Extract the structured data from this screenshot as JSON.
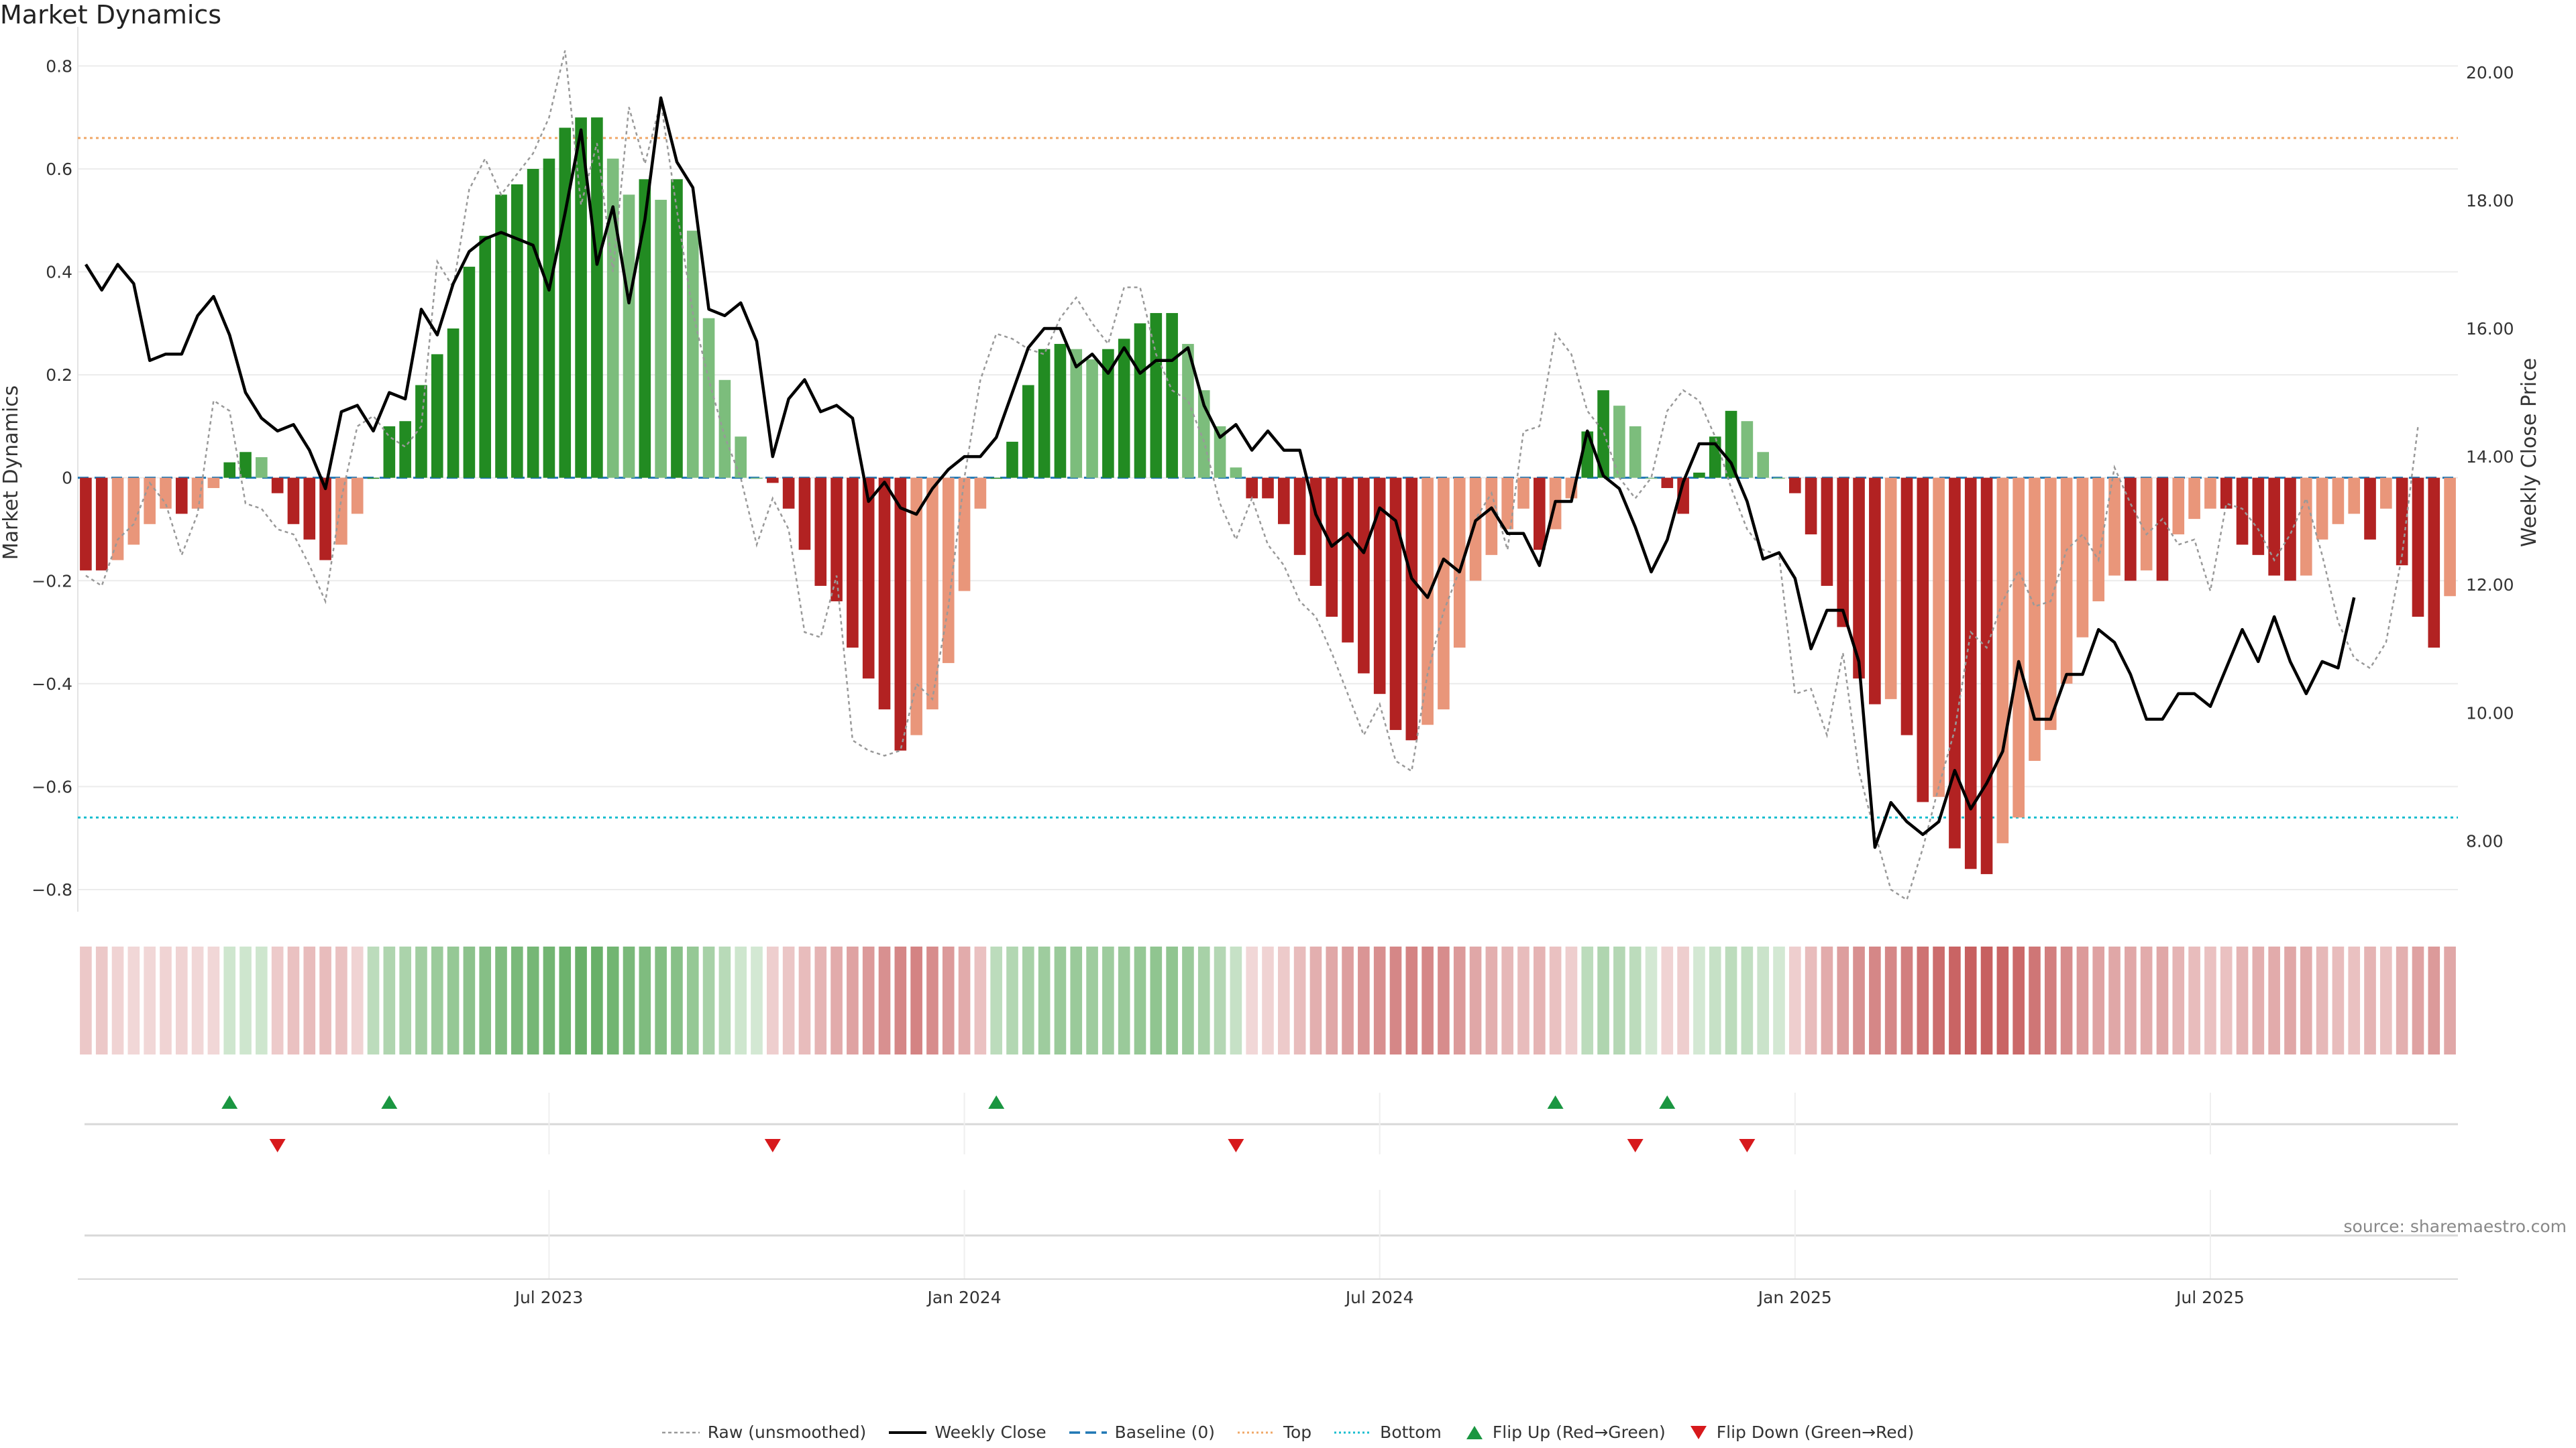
{
  "chart_data": {
    "title": "Market Dynamics",
    "type": "bar",
    "left_axis": {
      "label": "Market Dynamics",
      "ticks": [
        -0.8,
        -0.6,
        -0.4,
        -0.2,
        0,
        0.2,
        0.4,
        0.6,
        0.8
      ],
      "ylim": [
        -0.83,
        0.85
      ]
    },
    "right_axis": {
      "label": "Weekly Close Price",
      "ticks": [
        "8.00",
        "10.00",
        "12.00",
        "14.00",
        "16.00",
        "18.00",
        "20.00"
      ],
      "ylim": [
        7.0,
        20.5
      ]
    },
    "x_ticks": [
      "Jul 2023",
      "Jan 2024",
      "Jul 2024",
      "Jan 2025",
      "Jul 2025"
    ],
    "top_line": 0.66,
    "bottom_line": -0.66,
    "colors": {
      "strong_up": "#228b22",
      "weak_up": "#7cbd7c",
      "strong_down": "#b22222",
      "weak_down": "#e9967a",
      "raw": "#999999",
      "close": "#000000",
      "baseline": "#1f77b4",
      "top": "#f0a868",
      "bottom": "#17becf"
    },
    "dynamics": [
      -0.18,
      -0.18,
      -0.16,
      -0.13,
      -0.09,
      -0.06,
      -0.07,
      -0.06,
      -0.02,
      0.03,
      0.05,
      0.04,
      -0.03,
      -0.09,
      -0.12,
      -0.16,
      -0.13,
      -0.07,
      0.0,
      0.1,
      0.11,
      0.18,
      0.24,
      0.29,
      0.41,
      0.47,
      0.55,
      0.57,
      0.6,
      0.62,
      0.68,
      0.7,
      0.7,
      0.62,
      0.55,
      0.58,
      0.54,
      0.58,
      0.48,
      0.31,
      0.19,
      0.08,
      0.0,
      -0.01,
      -0.06,
      -0.14,
      -0.21,
      -0.24,
      -0.33,
      -0.39,
      -0.45,
      -0.53,
      -0.5,
      -0.45,
      -0.36,
      -0.22,
      -0.06,
      0.0,
      0.07,
      0.18,
      0.25,
      0.26,
      0.25,
      0.23,
      0.25,
      0.27,
      0.3,
      0.32,
      0.32,
      0.26,
      0.17,
      0.1,
      0.02,
      -0.04,
      -0.04,
      -0.09,
      -0.15,
      -0.21,
      -0.27,
      -0.32,
      -0.38,
      -0.42,
      -0.49,
      -0.51,
      -0.48,
      -0.45,
      -0.33,
      -0.2,
      -0.15,
      -0.1,
      -0.06,
      -0.14,
      -0.1,
      -0.04,
      0.09,
      0.17,
      0.14,
      0.1,
      0.0,
      -0.02,
      -0.07,
      0.01,
      0.08,
      0.13,
      0.11,
      0.05,
      0.0,
      -0.03,
      -0.11,
      -0.21,
      -0.29,
      -0.39,
      -0.44,
      -0.43,
      -0.5,
      -0.63,
      -0.62,
      -0.72,
      -0.76,
      -0.77,
      -0.71,
      -0.66,
      -0.55,
      -0.49,
      -0.4,
      -0.31,
      -0.24,
      -0.19,
      -0.2,
      -0.18,
      -0.2,
      -0.11,
      -0.08,
      -0.06,
      -0.06,
      -0.13,
      -0.15,
      -0.19,
      -0.2,
      -0.19,
      -0.12,
      -0.09,
      -0.07,
      -0.12,
      -0.06,
      -0.17,
      -0.27,
      -0.33,
      -0.23
    ],
    "raw": [
      -0.19,
      -0.21,
      -0.12,
      -0.09,
      -0.01,
      -0.05,
      -0.15,
      -0.07,
      0.15,
      0.13,
      -0.05,
      -0.06,
      -0.1,
      -0.11,
      -0.17,
      -0.24,
      -0.04,
      0.1,
      0.12,
      0.08,
      0.06,
      0.1,
      0.42,
      0.37,
      0.56,
      0.62,
      0.55,
      0.59,
      0.63,
      0.7,
      0.83,
      0.53,
      0.65,
      0.4,
      0.72,
      0.61,
      0.73,
      0.52,
      0.32,
      0.19,
      0.08,
      0.0,
      -0.13,
      -0.04,
      -0.1,
      -0.3,
      -0.31,
      -0.19,
      -0.51,
      -0.53,
      -0.54,
      -0.53,
      -0.4,
      -0.43,
      -0.25,
      0.0,
      0.19,
      0.28,
      0.27,
      0.25,
      0.24,
      0.31,
      0.35,
      0.3,
      0.26,
      0.37,
      0.37,
      0.24,
      0.17,
      0.15,
      0.07,
      -0.05,
      -0.12,
      -0.04,
      -0.13,
      -0.17,
      -0.24,
      -0.27,
      -0.34,
      -0.42,
      -0.5,
      -0.44,
      -0.55,
      -0.57,
      -0.38,
      -0.26,
      -0.18,
      -0.08,
      -0.03,
      -0.14,
      0.09,
      0.1,
      0.28,
      0.24,
      0.13,
      0.09,
      0.0,
      -0.04,
      0.0,
      0.13,
      0.17,
      0.15,
      0.08,
      -0.02,
      -0.1,
      -0.14,
      -0.15,
      -0.42,
      -0.41,
      -0.5,
      -0.34,
      -0.57,
      -0.69,
      -0.8,
      -0.82,
      -0.72,
      -0.6,
      -0.49,
      -0.3,
      -0.33,
      -0.24,
      -0.18,
      -0.25,
      -0.24,
      -0.14,
      -0.11,
      -0.16,
      0.02,
      -0.05,
      -0.11,
      -0.08,
      -0.13,
      -0.12,
      -0.22,
      -0.05,
      -0.06,
      -0.1,
      -0.16,
      -0.11,
      -0.04,
      -0.15,
      -0.28,
      -0.35,
      -0.37,
      -0.32,
      -0.15,
      0.1
    ],
    "close": [
      17.0,
      16.6,
      17.0,
      16.7,
      15.5,
      15.6,
      15.6,
      16.2,
      16.5,
      15.9,
      15.0,
      14.6,
      14.4,
      14.5,
      14.1,
      13.5,
      14.7,
      14.8,
      14.4,
      15.0,
      14.9,
      16.3,
      15.9,
      16.7,
      17.2,
      17.4,
      17.5,
      17.4,
      17.3,
      16.6,
      17.8,
      19.1,
      17.0,
      17.9,
      16.4,
      17.7,
      19.6,
      18.6,
      18.2,
      16.3,
      16.2,
      16.4,
      15.8,
      14.0,
      14.9,
      15.2,
      14.7,
      14.8,
      14.6,
      13.3,
      13.6,
      13.2,
      13.1,
      13.5,
      13.8,
      14.0,
      14.0,
      14.3,
      15.0,
      15.7,
      16.0,
      16.0,
      15.4,
      15.6,
      15.3,
      15.7,
      15.3,
      15.5,
      15.5,
      15.7,
      14.8,
      14.3,
      14.5,
      14.1,
      14.4,
      14.1,
      14.1,
      13.1,
      12.6,
      12.8,
      12.5,
      13.2,
      13.0,
      12.1,
      11.8,
      12.4,
      12.2,
      13.0,
      13.2,
      12.8,
      12.8,
      12.3,
      13.3,
      13.3,
      14.4,
      13.7,
      13.5,
      12.9,
      12.2,
      12.7,
      13.6,
      14.2,
      14.2,
      13.9,
      13.3,
      12.4,
      12.5,
      12.1,
      11.0,
      11.6,
      11.6,
      10.8,
      7.9,
      8.6,
      8.3,
      8.1,
      8.3,
      9.1,
      8.5,
      8.9,
      9.4,
      10.8,
      9.9,
      9.9,
      10.6,
      10.6,
      11.3,
      11.1,
      10.6,
      9.9,
      9.9,
      10.3,
      10.3,
      10.1,
      10.7,
      11.3,
      10.8,
      11.5,
      10.8,
      10.3,
      10.8,
      10.7,
      11.8
    ],
    "color_band": [
      0.25,
      0.25,
      0.2,
      0.18,
      0.18,
      0.2,
      0.2,
      0.18,
      0.18,
      0.22,
      0.22,
      0.22,
      0.24,
      0.28,
      0.3,
      0.3,
      0.28,
      0.2,
      0.3,
      0.36,
      0.38,
      0.42,
      0.45,
      0.48,
      0.52,
      0.55,
      0.58,
      0.6,
      0.62,
      0.64,
      0.66,
      0.68,
      0.68,
      0.64,
      0.6,
      0.58,
      0.56,
      0.54,
      0.48,
      0.4,
      0.32,
      0.22,
      0.2,
      0.22,
      0.26,
      0.3,
      0.34,
      0.38,
      0.42,
      0.46,
      0.5,
      0.54,
      0.56,
      0.52,
      0.46,
      0.38,
      0.28,
      0.3,
      0.35,
      0.4,
      0.44,
      0.46,
      0.46,
      0.44,
      0.44,
      0.46,
      0.48,
      0.5,
      0.5,
      0.46,
      0.4,
      0.34,
      0.26,
      0.18,
      0.2,
      0.24,
      0.3,
      0.36,
      0.4,
      0.44,
      0.48,
      0.5,
      0.54,
      0.56,
      0.54,
      0.52,
      0.46,
      0.4,
      0.36,
      0.32,
      0.3,
      0.34,
      0.28,
      0.22,
      0.3,
      0.36,
      0.34,
      0.3,
      0.2,
      0.2,
      0.22,
      0.2,
      0.26,
      0.3,
      0.28,
      0.24,
      0.2,
      0.22,
      0.3,
      0.38,
      0.44,
      0.5,
      0.54,
      0.54,
      0.58,
      0.64,
      0.66,
      0.7,
      0.72,
      0.72,
      0.7,
      0.68,
      0.62,
      0.58,
      0.52,
      0.46,
      0.42,
      0.4,
      0.4,
      0.38,
      0.4,
      0.34,
      0.3,
      0.28,
      0.28,
      0.34,
      0.36,
      0.38,
      0.4,
      0.38,
      0.32,
      0.3,
      0.28,
      0.34,
      0.28,
      0.36,
      0.42,
      0.46,
      0.4
    ],
    "flip_up_indices": [
      9,
      19,
      57,
      92,
      99
    ],
    "flip_down_indices": [
      12,
      43,
      72,
      97,
      104
    ],
    "legend": [
      "Raw (unsmoothed)",
      "Weekly Close",
      "Baseline (0)",
      "Top",
      "Bottom",
      "Flip Up (Red→Green)",
      "Flip Down (Green→Red)"
    ],
    "source": "source: sharemaestro.com"
  }
}
